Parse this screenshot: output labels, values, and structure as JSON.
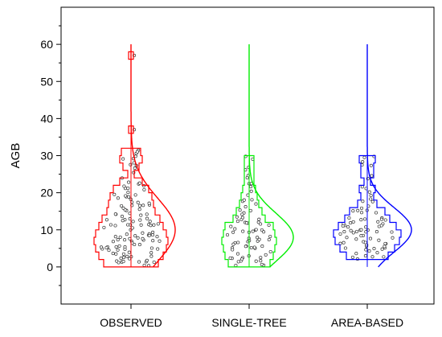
{
  "chart_data": {
    "type": "violin",
    "title": "",
    "xlabel": "",
    "ylabel": "AGB",
    "ylim": [
      -10,
      70
    ],
    "yticks": [
      0,
      10,
      20,
      30,
      40,
      50,
      60
    ],
    "categories": [
      "OBSERVED",
      "SINGLE-TREE",
      "AREA-BASED"
    ],
    "series": [
      {
        "category": "OBSERVED",
        "color": "#ff0000",
        "range": [
          0,
          60
        ],
        "histogram_bins": [
          {
            "from": 0,
            "to": 2,
            "count": 34
          },
          {
            "from": 2,
            "to": 4,
            "count": 40
          },
          {
            "from": 4,
            "to": 6,
            "count": 44
          },
          {
            "from": 6,
            "to": 8,
            "count": 46
          },
          {
            "from": 8,
            "to": 10,
            "count": 44
          },
          {
            "from": 10,
            "to": 12,
            "count": 40
          },
          {
            "from": 12,
            "to": 14,
            "count": 36
          },
          {
            "from": 14,
            "to": 16,
            "count": 30
          },
          {
            "from": 16,
            "to": 18,
            "count": 28
          },
          {
            "from": 18,
            "to": 20,
            "count": 26
          },
          {
            "from": 20,
            "to": 22,
            "count": 22
          },
          {
            "from": 22,
            "to": 24,
            "count": 14
          },
          {
            "from": 24,
            "to": 26,
            "count": 4
          },
          {
            "from": 26,
            "to": 28,
            "count": 10
          },
          {
            "from": 28,
            "to": 30,
            "count": 14
          },
          {
            "from": 30,
            "to": 32,
            "count": 12
          },
          {
            "from": 36,
            "to": 38,
            "count": 1
          },
          {
            "from": 56,
            "to": 58,
            "count": 1
          }
        ],
        "normal_fit": {
          "mean": 10,
          "sd": 8.5
        },
        "outliers": [
          37,
          57
        ]
      },
      {
        "category": "SINGLE-TREE",
        "color": "#00ee00",
        "range": [
          0,
          60
        ],
        "histogram_bins": [
          {
            "from": 0,
            "to": 2,
            "count": 26
          },
          {
            "from": 2,
            "to": 4,
            "count": 30
          },
          {
            "from": 4,
            "to": 6,
            "count": 32
          },
          {
            "from": 6,
            "to": 8,
            "count": 34
          },
          {
            "from": 8,
            "to": 10,
            "count": 32
          },
          {
            "from": 10,
            "to": 12,
            "count": 30
          },
          {
            "from": 12,
            "to": 14,
            "count": 20
          },
          {
            "from": 14,
            "to": 16,
            "count": 16
          },
          {
            "from": 16,
            "to": 18,
            "count": 12
          },
          {
            "from": 18,
            "to": 20,
            "count": 10
          },
          {
            "from": 20,
            "to": 22,
            "count": 8
          },
          {
            "from": 22,
            "to": 24,
            "count": 6
          },
          {
            "from": 24,
            "to": 26,
            "count": 6
          },
          {
            "from": 26,
            "to": 28,
            "count": 6
          },
          {
            "from": 28,
            "to": 30,
            "count": 6
          }
        ],
        "normal_fit": {
          "mean": 8,
          "sd": 6.5
        }
      },
      {
        "category": "AREA-BASED",
        "color": "#0000ff",
        "range": [
          0,
          60
        ],
        "histogram_bins": [
          {
            "from": 2,
            "to": 4,
            "count": 26
          },
          {
            "from": 4,
            "to": 6,
            "count": 34
          },
          {
            "from": 6,
            "to": 8,
            "count": 40
          },
          {
            "from": 8,
            "to": 10,
            "count": 42
          },
          {
            "from": 10,
            "to": 12,
            "count": 36
          },
          {
            "from": 12,
            "to": 14,
            "count": 28
          },
          {
            "from": 14,
            "to": 16,
            "count": 22
          },
          {
            "from": 16,
            "to": 18,
            "count": 12
          },
          {
            "from": 18,
            "to": 20,
            "count": 8
          },
          {
            "from": 20,
            "to": 22,
            "count": 10
          },
          {
            "from": 22,
            "to": 24,
            "count": 4
          },
          {
            "from": 24,
            "to": 26,
            "count": 8
          },
          {
            "from": 26,
            "to": 28,
            "count": 8
          },
          {
            "from": 28,
            "to": 30,
            "count": 10
          }
        ],
        "normal_fit": {
          "mean": 10,
          "sd": 6
        }
      }
    ]
  }
}
